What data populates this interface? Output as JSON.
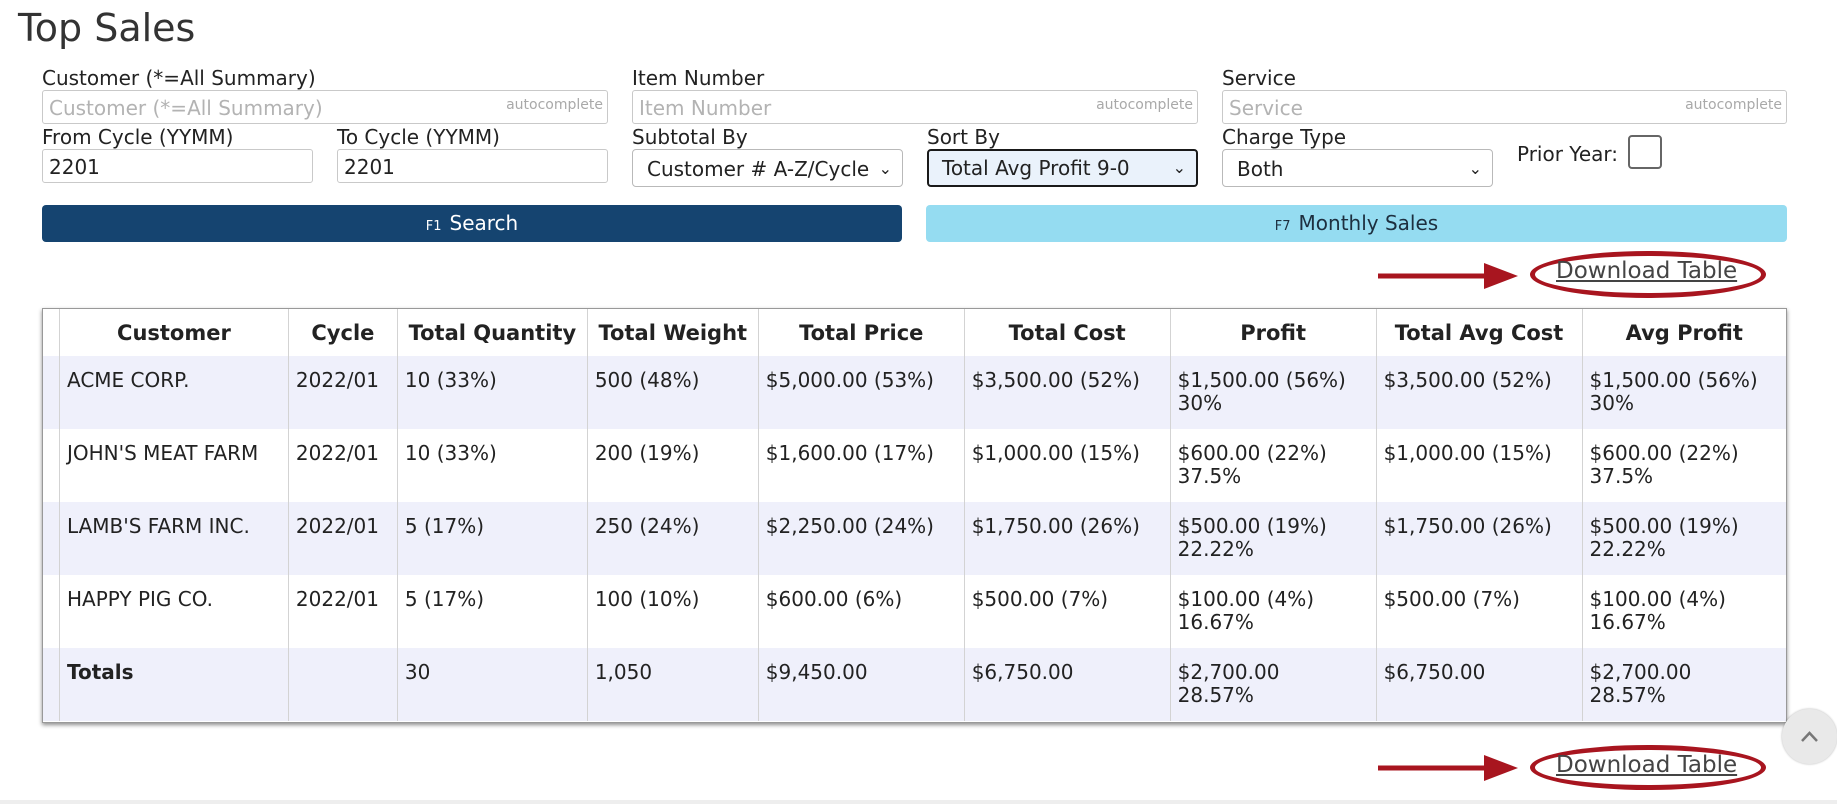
{
  "page": {
    "title": "Top Sales"
  },
  "filters": {
    "customer": {
      "label": "Customer (*=All Summary)",
      "placeholder": "Customer (*=All Summary)",
      "hint": "autocomplete",
      "value": ""
    },
    "item_number": {
      "label": "Item Number",
      "placeholder": "Item Number",
      "hint": "autocomplete",
      "value": ""
    },
    "service": {
      "label": "Service",
      "placeholder": "Service",
      "hint": "autocomplete",
      "value": ""
    },
    "from_cycle": {
      "label": "From Cycle (YYMM)",
      "value": "2201"
    },
    "to_cycle": {
      "label": "To Cycle (YYMM)",
      "value": "2201"
    },
    "subtotal_by": {
      "label": "Subtotal By",
      "selected": "Customer # A-Z/Cycle"
    },
    "sort_by": {
      "label": "Sort By",
      "selected": "Total Avg Profit 9-0"
    },
    "charge_type": {
      "label": "Charge Type",
      "selected": "Both"
    },
    "prior_year": {
      "label": "Prior Year:",
      "checked": false
    }
  },
  "buttons": {
    "search": {
      "key": "F1",
      "label": "Search"
    },
    "monthly": {
      "key": "F7",
      "label": "Monthly Sales"
    }
  },
  "download": {
    "label": "Download Table"
  },
  "table": {
    "headers": [
      "Customer",
      "Cycle",
      "Total Quantity",
      "Total Weight",
      "Total Price",
      "Total Cost",
      "Profit",
      "Total Avg Cost",
      "Avg Profit"
    ],
    "rows": [
      {
        "customer": "ACME CORP.",
        "cycle": "2022/01",
        "qty": "10 (33%)",
        "weight": "500 (48%)",
        "price": "$5,000.00 (53%)",
        "cost": "$3,500.00 (52%)",
        "profit": "$1,500.00 (56%)",
        "profit_pct": "30%",
        "avg_cost": "$3,500.00 (52%)",
        "avg_profit": "$1,500.00 (56%)",
        "avg_profit_pct": "30%"
      },
      {
        "customer": "JOHN'S MEAT FARM",
        "cycle": "2022/01",
        "qty": "10 (33%)",
        "weight": "200 (19%)",
        "price": "$1,600.00 (17%)",
        "cost": "$1,000.00 (15%)",
        "profit": "$600.00 (22%)",
        "profit_pct": "37.5%",
        "avg_cost": "$1,000.00 (15%)",
        "avg_profit": "$600.00 (22%)",
        "avg_profit_pct": "37.5%"
      },
      {
        "customer": "LAMB'S FARM INC.",
        "cycle": "2022/01",
        "qty": "5 (17%)",
        "weight": "250 (24%)",
        "price": "$2,250.00 (24%)",
        "cost": "$1,750.00 (26%)",
        "profit": "$500.00 (19%)",
        "profit_pct": "22.22%",
        "avg_cost": "$1,750.00 (26%)",
        "avg_profit": "$500.00 (19%)",
        "avg_profit_pct": "22.22%"
      },
      {
        "customer": "HAPPY PIG CO.",
        "cycle": "2022/01",
        "qty": "5 (17%)",
        "weight": "100 (10%)",
        "price": "$600.00 (6%)",
        "cost": "$500.00 (7%)",
        "profit": "$100.00 (4%)",
        "profit_pct": "16.67%",
        "avg_cost": "$500.00 (7%)",
        "avg_profit": "$100.00 (4%)",
        "avg_profit_pct": "16.67%"
      }
    ],
    "totals": {
      "label": "Totals",
      "cycle": "",
      "qty": "30",
      "weight": "1,050",
      "price": "$9,450.00",
      "cost": "$6,750.00",
      "profit": "$2,700.00",
      "profit_pct": "28.57%",
      "avg_cost": "$6,750.00",
      "avg_profit": "$2,700.00",
      "avg_profit_pct": "28.57%"
    }
  },
  "colors": {
    "search_button": "#154470",
    "monthly_button": "#95dcf1",
    "annotation": "#a8151f",
    "row_stripe": "#eff0fb"
  }
}
